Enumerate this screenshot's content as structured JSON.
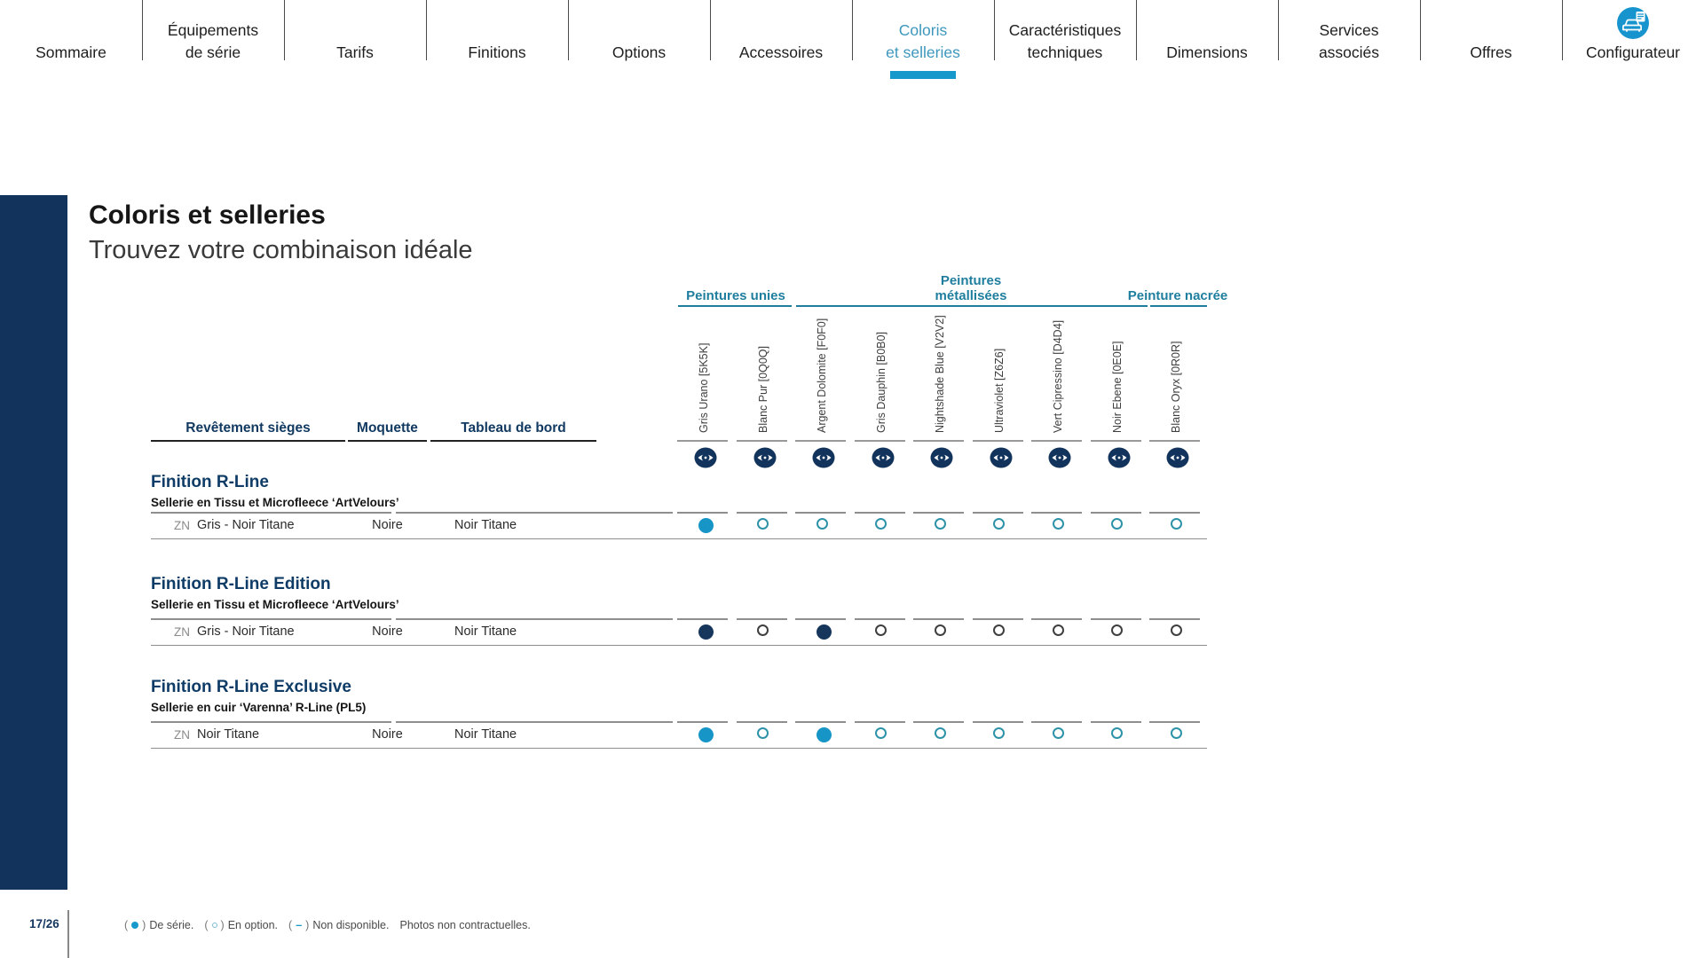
{
  "colors": {
    "accent_cyan": "#1899CC",
    "navy": "#12335C",
    "section_title_navy": "#0E3C66",
    "paint_group_teal": "#1F7E9E",
    "line_gray": "#8E8E8E"
  },
  "icons": {
    "configurator": "car-configurator-icon",
    "color_preview": "eye-icon"
  },
  "nav": {
    "active_tab": "Coloris et selleries",
    "tabs": [
      {
        "label": "Sommaire"
      },
      {
        "label": "Équipements\nde série"
      },
      {
        "label": "Tarifs"
      },
      {
        "label": "Finitions"
      },
      {
        "label": "Options"
      },
      {
        "label": "Accessoires"
      },
      {
        "label": "Coloris\net selleries",
        "active": true
      },
      {
        "label": "Caractéristiques\ntechniques"
      },
      {
        "label": "Dimensions"
      },
      {
        "label": "Services\nassociés"
      },
      {
        "label": "Offres"
      },
      {
        "label": "Configurateur",
        "icon": "car-configurator-icon"
      }
    ]
  },
  "header": {
    "title": "Coloris et selleries",
    "subtitle": "Trouvez votre combinaison idéale"
  },
  "table": {
    "paint_groups": [
      {
        "label": "Peintures\nunies",
        "col_start": 0,
        "col_span": 2
      },
      {
        "label": "Peintures\nmétallisées",
        "col_start": 2,
        "col_span": 6
      },
      {
        "label": "Peinture\nnacrée",
        "col_start": 8,
        "col_span": 1
      }
    ],
    "columns": [
      "Gris Urano [5K5K]",
      "Blanc Pur [0Q0Q]",
      "Argent Dolomite [F0F0]",
      "Gris Dauphin [B0B0]",
      "Nightshade Blue [V2V2]",
      "Ultraviolet [Z6Z6]",
      "Vert Cipressino [D4D4]",
      "Noir Ebene [0E0E]",
      "Blanc Oryx [0R0R]"
    ],
    "row_headers": [
      "Revêtement sièges",
      "Moquette",
      "Tableau de bord"
    ],
    "sections": [
      {
        "title": "Finition R-Line",
        "subtitle": "Sellerie en Tissu et Microfleece ‘ArtVelours’",
        "style": {
          "filled": "#1795C7",
          "open": "#2E93A8"
        },
        "rows": [
          {
            "code": "ZN",
            "seat": "Gris - Noir Titane",
            "carpet": "Noire",
            "dashboard": "Noir Titane",
            "availability": [
              "serie",
              "option",
              "option",
              "option",
              "option",
              "option",
              "option",
              "option",
              "option"
            ]
          }
        ]
      },
      {
        "title": "Finition R-Line Edition",
        "subtitle": "Sellerie en Tissu et Microfleece ‘ArtVelours’",
        "style": {
          "filled": "#16365C",
          "open": "#3F3F3F"
        },
        "rows": [
          {
            "code": "ZN",
            "seat": "Gris - Noir Titane",
            "carpet": "Noire",
            "dashboard": "Noir Titane",
            "availability": [
              "serie",
              "option",
              "serie",
              "option",
              "option",
              "option",
              "option",
              "option",
              "option"
            ]
          }
        ]
      },
      {
        "title": "Finition R-Line Exclusive",
        "subtitle": "Sellerie en cuir ‘Varenna’ R-Line (PL5)",
        "style": {
          "filled": "#1795C7",
          "open": "#2E93A8"
        },
        "rows": [
          {
            "code": "ZN",
            "seat": "Noir Titane",
            "carpet": "Noire",
            "dashboard": "Noir Titane",
            "availability": [
              "serie",
              "option",
              "serie",
              "option",
              "option",
              "option",
              "option",
              "option",
              "option"
            ]
          }
        ]
      }
    ]
  },
  "footer": {
    "page_number": "17/26",
    "legend": [
      {
        "symbol": "filled-dot",
        "text": "De série."
      },
      {
        "symbol": "open-dot",
        "text": "En option."
      },
      {
        "symbol": "dash",
        "text": "Non disponible."
      },
      {
        "symbol": "",
        "text": "Photos non contractuelles."
      }
    ]
  }
}
